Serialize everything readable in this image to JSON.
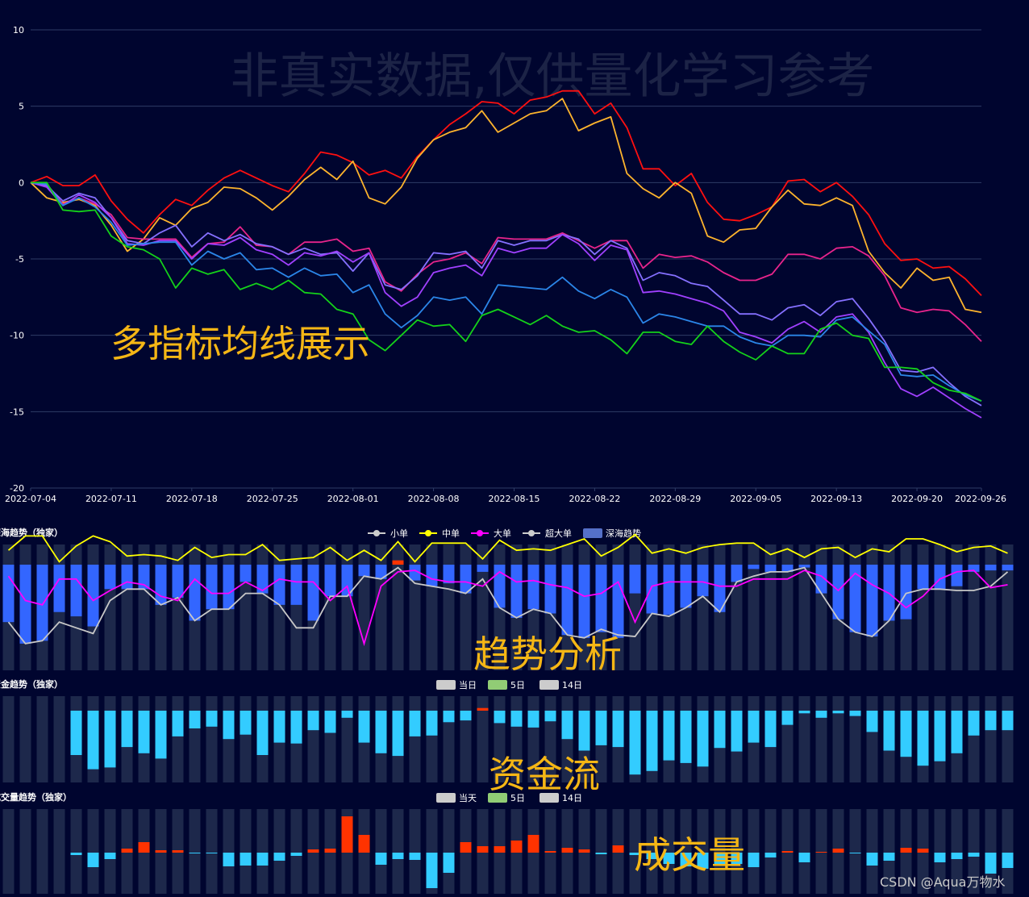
{
  "watermark": "非真实数据,仅供量化学习参考",
  "labels": {
    "main_overlay": "多指标均线展示",
    "trend_overlay": "趋势分析",
    "flow_overlay": "资金流",
    "volume_overlay": "成交量",
    "credit": "CSDN @Aqua万物水"
  },
  "colors": {
    "background": "#00052f",
    "band": "#1d284b",
    "grid": "#2e3c66",
    "bar_blue": "#3366ff",
    "bar_cyan": "#33ccff",
    "bar_red": "#ff3300",
    "overlay": "#f5b615"
  },
  "chart_data": [
    {
      "type": "line",
      "title": "",
      "ylim": [
        -20,
        10
      ],
      "yticks": [
        "10",
        "5",
        "0",
        "-5",
        "-10",
        "-15",
        "-20"
      ],
      "grid": true,
      "xtick_labels": [
        "2022-07-04",
        "2022-07-11",
        "2022-07-18",
        "2022-07-25",
        "2022-08-01",
        "2022-08-08",
        "2022-08-15",
        "2022-08-22",
        "2022-08-29",
        "2022-09-05",
        "2022-09-13",
        "2022-09-20",
        "2022-09-26"
      ],
      "series": [
        {
          "color": "#ff1010",
          "values": [
            0,
            0.4,
            -0.2,
            -0.2,
            0.5,
            -1.2,
            -2.4,
            -3.3,
            -2.1,
            -1.1,
            -1.5,
            -0.5,
            0.3,
            0.8,
            0.3,
            -0.2,
            -0.6,
            0.6,
            2.0,
            1.8,
            1.3,
            0.5,
            0.8,
            0.3,
            1.7,
            2.8,
            3.8,
            4.5,
            5.3,
            5.2,
            4.5,
            5.4,
            5.6,
            6.0,
            6.0,
            4.5,
            5.2,
            3.6,
            0.9,
            0.9,
            -0.2,
            0.6,
            -1.3,
            -2.4,
            -2.5,
            -2.1,
            -1.6,
            0.1,
            0.2,
            -0.6,
            0.0,
            -0.9,
            -2.1,
            -4.0,
            -5.1,
            -5.0,
            -5.6,
            -5.5,
            -6.3,
            -7.4
          ]
        },
        {
          "color": "#fdb42d",
          "values": [
            0,
            -1.0,
            -1.3,
            -1.1,
            -1.5,
            -2.8,
            -4.5,
            -3.7,
            -2.3,
            -2.8,
            -1.7,
            -1.3,
            -0.3,
            -0.4,
            -1.0,
            -1.8,
            -0.9,
            0.2,
            1.0,
            0.2,
            1.4,
            -1.0,
            -1.4,
            -0.3,
            1.6,
            2.8,
            3.3,
            3.6,
            4.7,
            3.3,
            3.9,
            4.5,
            4.7,
            5.5,
            3.4,
            3.9,
            4.3,
            0.6,
            -0.4,
            -1.0,
            0.0,
            -0.7,
            -3.5,
            -3.9,
            -3.1,
            -3.0,
            -1.6,
            -0.5,
            -1.4,
            -1.5,
            -1.0,
            -1.5,
            -4.5,
            -5.9,
            -6.9,
            -5.6,
            -6.4,
            -6.2,
            -8.3,
            -8.5
          ]
        },
        {
          "color": "#e8248c",
          "values": [
            0,
            -0.1,
            -1.4,
            -1.0,
            -1.4,
            -2.1,
            -3.6,
            -3.7,
            -3.7,
            -3.7,
            -4.9,
            -4.0,
            -3.9,
            -2.9,
            -4.1,
            -4.2,
            -4.7,
            -3.9,
            -3.9,
            -3.7,
            -4.5,
            -4.3,
            -6.5,
            -7.1,
            -6.0,
            -5.2,
            -5.0,
            -4.6,
            -5.3,
            -3.6,
            -3.7,
            -3.7,
            -3.7,
            -3.3,
            -3.8,
            -4.3,
            -3.8,
            -3.8,
            -5.6,
            -4.7,
            -4.9,
            -4.8,
            -5.2,
            -5.9,
            -6.4,
            -6.4,
            -6.0,
            -4.7,
            -4.7,
            -5.0,
            -4.3,
            -4.2,
            -4.8,
            -6.1,
            -8.2,
            -8.5,
            -8.3,
            -8.4,
            -9.3,
            -10.4
          ]
        },
        {
          "color": "#8570ff",
          "values": [
            0,
            -0.2,
            -1.2,
            -0.7,
            -1.0,
            -2.3,
            -3.8,
            -4.0,
            -3.3,
            -2.8,
            -4.2,
            -3.3,
            -3.8,
            -3.4,
            -4.0,
            -4.2,
            -4.7,
            -4.3,
            -4.7,
            -4.6,
            -5.8,
            -4.6,
            -6.7,
            -7.0,
            -6.1,
            -4.6,
            -4.7,
            -4.5,
            -5.6,
            -3.8,
            -4.1,
            -3.8,
            -3.8,
            -3.4,
            -3.7,
            -4.7,
            -3.8,
            -4.3,
            -6.4,
            -5.9,
            -6.1,
            -6.6,
            -6.8,
            -7.7,
            -8.6,
            -8.6,
            -9.0,
            -8.2,
            -8.0,
            -8.7,
            -7.8,
            -7.6,
            -8.9,
            -10.4,
            -12.3,
            -12.4,
            -12.1,
            -13.1,
            -14.0,
            -14.6
          ]
        },
        {
          "color": "#a040ff",
          "values": [
            0,
            -0.3,
            -1.5,
            -0.8,
            -1.3,
            -2.3,
            -4.0,
            -4.1,
            -3.8,
            -3.8,
            -5.0,
            -4.0,
            -4.1,
            -3.6,
            -4.4,
            -4.7,
            -5.4,
            -4.6,
            -4.8,
            -4.5,
            -5.2,
            -4.6,
            -7.2,
            -8.1,
            -7.5,
            -5.9,
            -5.6,
            -5.4,
            -6.1,
            -4.3,
            -4.6,
            -4.3,
            -4.3,
            -3.4,
            -4.0,
            -5.1,
            -4.1,
            -4.4,
            -7.2,
            -7.1,
            -7.3,
            -7.6,
            -7.9,
            -8.4,
            -9.8,
            -10.1,
            -10.5,
            -9.6,
            -9.1,
            -9.8,
            -8.8,
            -8.6,
            -9.8,
            -11.8,
            -13.5,
            -14.0,
            -13.4,
            -14.1,
            -14.8,
            -15.4
          ]
        },
        {
          "color": "#2b86e8",
          "values": [
            0,
            -0.1,
            -1.5,
            -1.0,
            -1.6,
            -2.6,
            -4.1,
            -4.0,
            -3.9,
            -3.9,
            -5.4,
            -4.5,
            -5.0,
            -4.6,
            -5.7,
            -5.6,
            -6.2,
            -5.6,
            -6.1,
            -6.0,
            -7.2,
            -6.7,
            -8.6,
            -9.5,
            -8.7,
            -7.5,
            -7.7,
            -7.5,
            -8.6,
            -6.7,
            -6.8,
            -6.9,
            -7.0,
            -6.2,
            -7.1,
            -7.6,
            -7.0,
            -7.5,
            -9.2,
            -8.6,
            -8.8,
            -9.1,
            -9.4,
            -9.4,
            -10.1,
            -10.5,
            -10.7,
            -10.0,
            -10.0,
            -10.1,
            -9.0,
            -8.8,
            -9.7,
            -10.6,
            -12.6,
            -12.7,
            -12.6,
            -13.3,
            -13.9,
            -14.3
          ]
        },
        {
          "color": "#14d21a",
          "values": [
            0,
            0,
            -1.8,
            -1.9,
            -1.8,
            -3.5,
            -4.2,
            -4.4,
            -5.0,
            -6.9,
            -5.6,
            -6.0,
            -5.7,
            -7.0,
            -6.6,
            -7.0,
            -6.4,
            -7.2,
            -7.3,
            -8.3,
            -8.6,
            -10.3,
            -11.0,
            -10.0,
            -9.0,
            -9.4,
            -9.3,
            -10.4,
            -8.7,
            -8.3,
            -8.8,
            -9.3,
            -8.7,
            -9.4,
            -9.8,
            -9.7,
            -10.3,
            -11.2,
            -9.8,
            -9.8,
            -10.4,
            -10.6,
            -9.4,
            -10.4,
            -11.1,
            -11.6,
            -10.7,
            -11.2,
            -11.2,
            -9.6,
            -9.2,
            -10.0,
            -10.2,
            -12.1,
            -12.1,
            -12.2,
            -13.1,
            -13.6,
            -13.8,
            -14.3
          ]
        }
      ]
    },
    {
      "type": "bar",
      "title": "深海趋势（独家）",
      "legend": [
        {
          "label": "小单",
          "color": "#cccccc",
          "kind": "line"
        },
        {
          "label": "中单",
          "color": "#ffff00",
          "kind": "line"
        },
        {
          "label": "大单",
          "color": "#ff00ff",
          "kind": "line"
        },
        {
          "label": "超大单",
          "color": "#cccccc",
          "kind": "line"
        },
        {
          "label": "深海趋势",
          "color": "#5570c8",
          "kind": "bar"
        }
      ],
      "legend_placement": "top-center",
      "bar_values": [
        -40,
        -55,
        -53,
        -33,
        -36,
        -43,
        -17,
        -17,
        -17,
        -28,
        -23,
        -39,
        -31,
        -31,
        -12,
        -20,
        -28,
        -28,
        -39,
        -22,
        -22,
        -8,
        -10,
        3,
        -11,
        -15,
        -13,
        -20,
        -5,
        -30,
        -37,
        -31,
        -34,
        -49,
        -51,
        -47,
        -51,
        -20,
        -34,
        -35,
        -30,
        -22,
        -33,
        -12,
        -3,
        -5,
        -5,
        -2,
        -20,
        -38,
        -47,
        -50,
        -39,
        -38,
        -17,
        -17,
        -15,
        -5,
        -4,
        -4
      ],
      "lines": {
        "yellow": [
          10,
          20,
          20,
          2,
          13,
          20,
          16,
          6,
          7,
          6,
          3,
          12,
          5,
          7,
          7,
          14,
          3,
          4,
          5,
          12,
          3,
          10,
          3,
          16,
          2,
          15,
          15,
          15,
          4,
          17,
          10,
          11,
          10,
          14,
          18,
          6,
          12,
          21,
          8,
          11,
          8,
          12,
          14,
          15,
          15,
          7,
          11,
          5,
          11,
          12,
          5,
          11,
          9,
          18,
          18,
          14,
          9,
          12,
          13,
          8
        ],
        "magenta": [
          -8,
          -25,
          -28,
          -10,
          -10,
          -25,
          -18,
          -12,
          -14,
          -22,
          -25,
          -10,
          -20,
          -20,
          -12,
          -18,
          -10,
          -12,
          -12,
          -25,
          -15,
          -55,
          -15,
          -5,
          -4,
          -10,
          -12,
          -12,
          -15,
          -5,
          -12,
          -11,
          -14,
          -16,
          -22,
          -20,
          -12,
          -40,
          -15,
          -12,
          -12,
          -12,
          -15,
          -15,
          -10,
          -10,
          -10,
          -4,
          -8,
          -18,
          -6,
          -14,
          -20,
          -30,
          -22,
          -10,
          -5,
          -4,
          -16,
          -14
        ],
        "gray": [
          -40,
          -55,
          -53,
          -40,
          -44,
          -48,
          -25,
          -17,
          -17,
          -28,
          -23,
          -39,
          -31,
          -31,
          -20,
          -20,
          -28,
          -44,
          -44,
          -22,
          -22,
          -8,
          -10,
          -2,
          -13,
          -15,
          -17,
          -20,
          -10,
          -30,
          -37,
          -31,
          -34,
          -49,
          -51,
          -45,
          -49,
          -50,
          -34,
          -36,
          -30,
          -22,
          -33,
          -12,
          -8,
          -5,
          -5,
          -2,
          -20,
          -38,
          -47,
          -50,
          -39,
          -20,
          -17,
          -17,
          -18,
          -18,
          -15,
          -5
        ]
      }
    },
    {
      "type": "bar",
      "title": "资金趋势（独家）",
      "legend": [
        {
          "label": "当日",
          "color": "#cccccc"
        },
        {
          "label": "5日",
          "color": "#91cc75"
        },
        {
          "label": "14日",
          "color": "#cccccc"
        }
      ],
      "legend_placement": "top-center",
      "values": [
        0,
        0,
        0,
        0,
        -50,
        -66,
        -64,
        -41,
        -48,
        -54,
        -29,
        -20,
        -18,
        -32,
        -27,
        -50,
        -36,
        -37,
        -22,
        -25,
        -8,
        -36,
        -48,
        -51,
        -29,
        -28,
        -13,
        -11,
        3,
        -14,
        -18,
        -19,
        -12,
        -32,
        -45,
        -39,
        -41,
        -72,
        -68,
        -56,
        -59,
        -63,
        -42,
        -46,
        -36,
        -41,
        -16,
        -3,
        -8,
        -3,
        -6,
        -24,
        -45,
        -52,
        -62,
        -57,
        -48,
        -28,
        -22,
        -22
      ]
    },
    {
      "type": "bar",
      "title": "成交量趋势（独家）",
      "legend": [
        {
          "label": "当天",
          "color": "#cccccc"
        },
        {
          "label": "5日",
          "color": "#91cc75"
        },
        {
          "label": "14日",
          "color": "#cccccc"
        }
      ],
      "legend_placement": "top-center",
      "values": [
        0,
        0,
        0,
        0,
        -3,
        -18,
        -8,
        5,
        13,
        3,
        3,
        -1,
        -1,
        -17,
        -16,
        -16,
        -10,
        -4,
        4,
        5,
        45,
        22,
        -15,
        -8,
        -9,
        -44,
        -25,
        13,
        8,
        8,
        15,
        22,
        2,
        6,
        4,
        -2,
        9,
        -3,
        -8,
        -14,
        -17,
        -20,
        -15,
        -14,
        -18,
        -6,
        2,
        -12,
        1,
        5,
        -1,
        -16,
        -10,
        6,
        5,
        -12,
        -8,
        -5,
        -26,
        -19
      ]
    }
  ]
}
